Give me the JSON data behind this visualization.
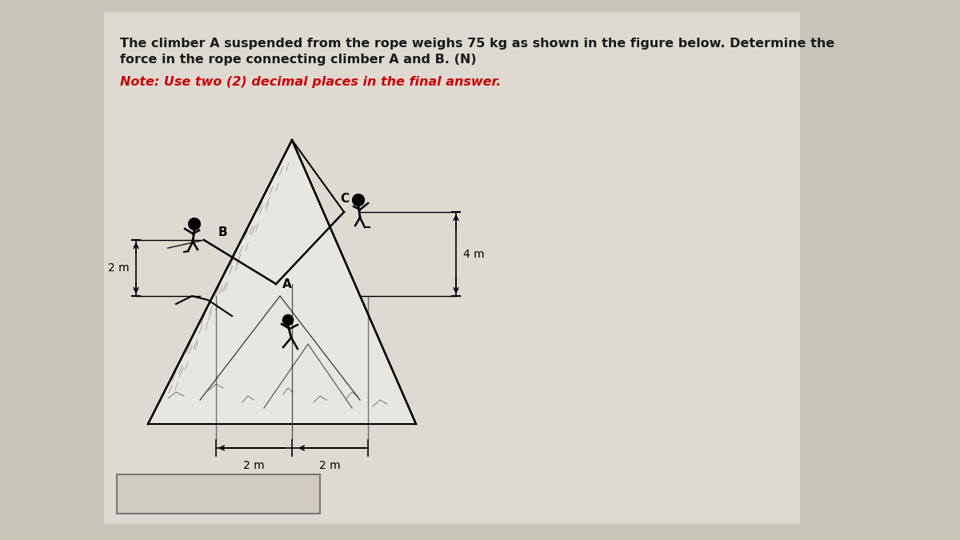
{
  "title_line1": "The climber A suspended from the rope weighs 75 kg as shown in the figure below. Determine the",
  "title_line2": "force in the rope connecting climber A and B. (N)",
  "note_text": "Note: Use two (2) decimal places in the final answer.",
  "title_color": "#1a1a1a",
  "note_color": "#cc0000",
  "bg_color": "#c8c4b8",
  "panel_color": "#dedad2",
  "title_fontsize": 11.5,
  "note_fontsize": 11.5,
  "dim_4m": "4 m",
  "dim_2m_v": "2 m",
  "dim_2m_h1": "2 m",
  "dim_2m_h2": "2 m",
  "label_A": "A",
  "label_B": "B",
  "label_C": "C"
}
